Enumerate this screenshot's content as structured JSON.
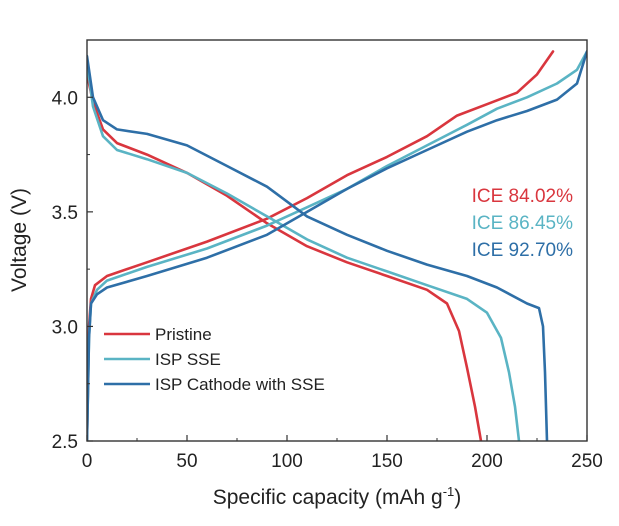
{
  "chart_data": {
    "type": "line",
    "title": "",
    "xlabel": "Specific capacity (mAh g",
    "xlabel_sup": "-1",
    "xlabel_tail": ")",
    "ylabel": "Voltage (V)",
    "xlim": [
      0,
      250
    ],
    "ylim": [
      2.5,
      4.25
    ],
    "xticks": [
      0,
      50,
      100,
      150,
      200,
      250
    ],
    "xtick_labels": [
      "0",
      "50",
      "100",
      "150",
      "200",
      "250"
    ],
    "yticks": [
      2.5,
      3.0,
      3.5,
      4.0
    ],
    "ytick_labels": [
      "2.5",
      "3.0",
      "3.5",
      "4.0"
    ],
    "grid": false,
    "legend_position": "bottom-left",
    "series": [
      {
        "name": "Pristine",
        "color": "#d9363e",
        "charge": [
          [
            0,
            2.5
          ],
          [
            1,
            3.0
          ],
          [
            2,
            3.12
          ],
          [
            4,
            3.18
          ],
          [
            10,
            3.22
          ],
          [
            30,
            3.28
          ],
          [
            60,
            3.37
          ],
          [
            90,
            3.47
          ],
          [
            110,
            3.56
          ],
          [
            130,
            3.66
          ],
          [
            150,
            3.74
          ],
          [
            170,
            3.83
          ],
          [
            185,
            3.92
          ],
          [
            200,
            3.97
          ],
          [
            215,
            4.02
          ],
          [
            225,
            4.1
          ],
          [
            233,
            4.2
          ]
        ],
        "discharge": [
          [
            0,
            4.1
          ],
          [
            3,
            3.98
          ],
          [
            8,
            3.86
          ],
          [
            15,
            3.8
          ],
          [
            30,
            3.75
          ],
          [
            50,
            3.67
          ],
          [
            70,
            3.57
          ],
          [
            90,
            3.45
          ],
          [
            110,
            3.35
          ],
          [
            130,
            3.28
          ],
          [
            150,
            3.22
          ],
          [
            170,
            3.16
          ],
          [
            180,
            3.1
          ],
          [
            186,
            2.98
          ],
          [
            190,
            2.82
          ],
          [
            194,
            2.65
          ],
          [
            197,
            2.5
          ]
        ],
        "ice_label": "ICE 84.02%"
      },
      {
        "name": "ISP SSE",
        "color": "#5ab4c4",
        "charge": [
          [
            0,
            2.5
          ],
          [
            1,
            2.95
          ],
          [
            2,
            3.1
          ],
          [
            5,
            3.16
          ],
          [
            10,
            3.2
          ],
          [
            30,
            3.26
          ],
          [
            60,
            3.34
          ],
          [
            90,
            3.44
          ],
          [
            110,
            3.52
          ],
          [
            130,
            3.6
          ],
          [
            150,
            3.7
          ],
          [
            170,
            3.79
          ],
          [
            190,
            3.88
          ],
          [
            205,
            3.95
          ],
          [
            220,
            4.0
          ],
          [
            235,
            4.06
          ],
          [
            245,
            4.12
          ],
          [
            250,
            4.2
          ]
        ],
        "discharge": [
          [
            0,
            4.15
          ],
          [
            3,
            3.96
          ],
          [
            8,
            3.83
          ],
          [
            15,
            3.77
          ],
          [
            30,
            3.73
          ],
          [
            50,
            3.67
          ],
          [
            70,
            3.58
          ],
          [
            90,
            3.48
          ],
          [
            110,
            3.38
          ],
          [
            130,
            3.3
          ],
          [
            150,
            3.24
          ],
          [
            170,
            3.18
          ],
          [
            190,
            3.12
          ],
          [
            200,
            3.06
          ],
          [
            207,
            2.95
          ],
          [
            211,
            2.8
          ],
          [
            214,
            2.65
          ],
          [
            216,
            2.5
          ]
        ],
        "ice_label": "ICE 86.45%"
      },
      {
        "name": "ISP Cathode with SSE",
        "color": "#2e6fa7",
        "charge": [
          [
            0,
            2.5
          ],
          [
            1,
            2.95
          ],
          [
            2,
            3.1
          ],
          [
            5,
            3.14
          ],
          [
            10,
            3.17
          ],
          [
            30,
            3.22
          ],
          [
            60,
            3.3
          ],
          [
            90,
            3.4
          ],
          [
            110,
            3.5
          ],
          [
            130,
            3.6
          ],
          [
            150,
            3.69
          ],
          [
            170,
            3.77
          ],
          [
            190,
            3.85
          ],
          [
            205,
            3.9
          ],
          [
            220,
            3.94
          ],
          [
            235,
            3.99
          ],
          [
            245,
            4.06
          ],
          [
            250,
            4.2
          ]
        ],
        "discharge": [
          [
            0,
            4.18
          ],
          [
            3,
            4.0
          ],
          [
            8,
            3.9
          ],
          [
            15,
            3.86
          ],
          [
            30,
            3.84
          ],
          [
            50,
            3.79
          ],
          [
            70,
            3.7
          ],
          [
            90,
            3.61
          ],
          [
            110,
            3.48
          ],
          [
            130,
            3.4
          ],
          [
            150,
            3.33
          ],
          [
            170,
            3.27
          ],
          [
            190,
            3.22
          ],
          [
            205,
            3.17
          ],
          [
            220,
            3.1
          ],
          [
            226,
            3.08
          ],
          [
            228,
            3.0
          ],
          [
            229,
            2.8
          ],
          [
            230,
            2.5
          ]
        ],
        "ice_label": "ICE 92.70%"
      }
    ]
  }
}
